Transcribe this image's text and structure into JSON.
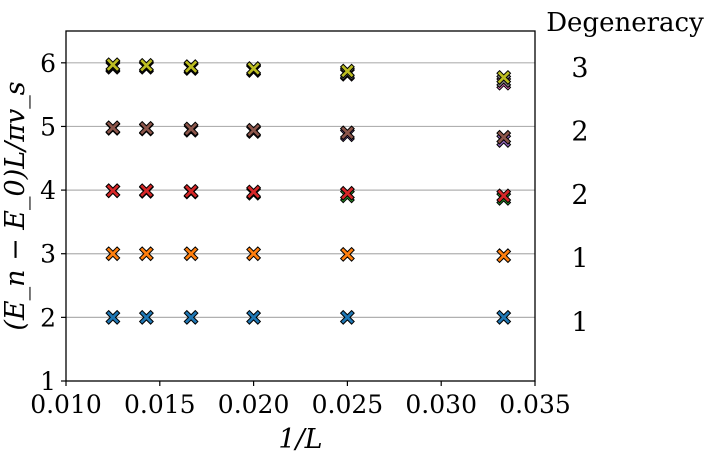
{
  "chart_data": {
    "type": "scatter",
    "xlabel": "1/L",
    "ylabel": "(E_n − E_0)L/πv_s",
    "xlim": [
      0.01,
      0.035
    ],
    "ylim": [
      1,
      6.5
    ],
    "xticks": [
      "0.010",
      "0.015",
      "0.020",
      "0.025",
      "0.030",
      "0.035"
    ],
    "xtick_values": [
      0.01,
      0.015,
      0.02,
      0.025,
      0.03,
      0.035
    ],
    "yticks": [
      "1",
      "2",
      "3",
      "4",
      "5",
      "6"
    ],
    "ytick_values": [
      1,
      2,
      3,
      4,
      5,
      6
    ],
    "marker": "X",
    "horizontal_reference_lines": [
      2,
      3,
      4,
      5,
      6
    ],
    "x": [
      0.0125,
      0.014286,
      0.016667,
      0.02,
      0.025,
      0.033333
    ],
    "series": [
      {
        "color": "#1f77b4",
        "values": [
          2.0,
          2.0,
          2.0,
          2.0,
          2.0,
          2.0
        ]
      },
      {
        "color": "#ff7f0e",
        "values": [
          3.0,
          3.0,
          3.0,
          3.0,
          2.99,
          2.97
        ]
      },
      {
        "color": "#2ca02c",
        "values": [
          3.99,
          3.98,
          3.97,
          3.95,
          3.91,
          3.87
        ]
      },
      {
        "color": "#d62728",
        "values": [
          3.99,
          3.99,
          3.98,
          3.97,
          3.95,
          3.91
        ]
      },
      {
        "color": "#9467bd",
        "values": [
          4.97,
          4.96,
          4.94,
          4.92,
          4.87,
          4.78
        ]
      },
      {
        "color": "#8c564b",
        "values": [
          4.98,
          4.97,
          4.96,
          4.94,
          4.9,
          4.83
        ]
      },
      {
        "color": "#e377c2",
        "values": [
          5.93,
          5.93,
          5.91,
          5.88,
          5.82,
          5.68
        ]
      },
      {
        "color": "#7f7f7f",
        "values": [
          5.95,
          5.94,
          5.92,
          5.89,
          5.84,
          5.72
        ]
      },
      {
        "color": "#bcbd22",
        "values": [
          5.97,
          5.96,
          5.94,
          5.91,
          5.87,
          5.77
        ]
      }
    ],
    "degeneracy": {
      "title": "Degeneracy",
      "levels": [
        {
          "y": 6,
          "label": "3"
        },
        {
          "y": 5,
          "label": "2"
        },
        {
          "y": 4,
          "label": "2"
        },
        {
          "y": 3,
          "label": "1"
        },
        {
          "y": 2,
          "label": "1"
        }
      ]
    }
  }
}
